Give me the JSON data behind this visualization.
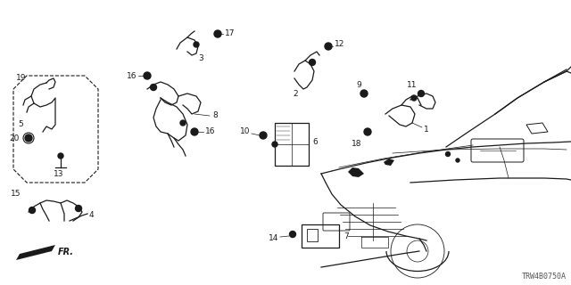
{
  "bg_color": "#ffffff",
  "line_color": "#1a1a1a",
  "watermark": "TRW4B0750A",
  "figsize": [
    6.4,
    3.2
  ],
  "dpi": 100
}
